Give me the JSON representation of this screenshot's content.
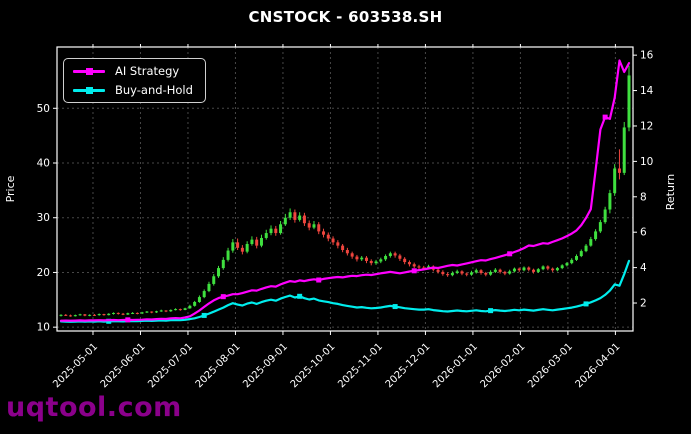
{
  "title": "CNSTOCK - 603538.SH",
  "watermark": "uqtool.com",
  "colors": {
    "background": "#000000",
    "text": "#ffffff",
    "grid": "#474747",
    "spine": "#ffffff",
    "candle_up": "#3fe03f",
    "candle_down": "#ef453e",
    "ai": "#ff00ff",
    "buy_hold": "#00eded",
    "watermark": "#8b008b"
  },
  "legend": {
    "items": [
      {
        "label": "AI Strategy",
        "color_key": "ai"
      },
      {
        "label": "Buy-and-Hold",
        "color_key": "buy_hold"
      }
    ]
  },
  "chart_data": {
    "type": "candlestick+line",
    "title": "CNSTOCK - 603538.SH",
    "x_axis": {
      "tick_labels": [
        "2025-05-01",
        "2025-06-01",
        "2025-07-01",
        "2025-08-01",
        "2025-09-01",
        "2025-10-01",
        "2025-11-01",
        "2025-12-01",
        "2026-01-01",
        "2026-02-01",
        "2026-03-01",
        "2026-04-01"
      ],
      "tick_indices": [
        6.7,
        16.65,
        26.6,
        36.55,
        46.5,
        56.45,
        66.4,
        76.35,
        86.3,
        96.25,
        106.2,
        116.15
      ]
    },
    "price_axis": {
      "label": "Price",
      "ticks": [
        10,
        20,
        30,
        40,
        50
      ],
      "range": [
        9.3,
        61.2
      ]
    },
    "return_axis": {
      "label": "Return",
      "ticks": [
        2,
        4,
        6,
        8,
        10,
        12,
        14,
        16
      ],
      "range": [
        0.42,
        16.46
      ]
    },
    "candles_ohlc": [
      [
        12.1,
        12.35,
        11.95,
        12.25
      ],
      [
        12.25,
        12.4,
        12.05,
        12.15
      ],
      [
        12.15,
        12.3,
        11.9,
        12.0
      ],
      [
        12.0,
        12.3,
        11.95,
        12.2
      ],
      [
        12.2,
        12.45,
        12.1,
        12.35
      ],
      [
        12.35,
        12.4,
        12.0,
        12.1
      ],
      [
        12.1,
        12.35,
        12.0,
        12.25
      ],
      [
        12.25,
        12.4,
        12.05,
        12.2
      ],
      [
        12.2,
        12.5,
        12.1,
        12.4
      ],
      [
        12.4,
        12.45,
        12.1,
        12.2
      ],
      [
        12.2,
        12.55,
        12.15,
        12.45
      ],
      [
        12.45,
        12.7,
        12.3,
        12.6
      ],
      [
        12.6,
        12.7,
        12.3,
        12.45
      ],
      [
        12.45,
        12.6,
        12.2,
        12.3
      ],
      [
        12.3,
        12.65,
        12.25,
        12.55
      ],
      [
        12.55,
        12.75,
        12.4,
        12.6
      ],
      [
        12.6,
        12.7,
        12.35,
        12.5
      ],
      [
        12.5,
        12.8,
        12.4,
        12.7
      ],
      [
        12.7,
        12.95,
        12.6,
        12.85
      ],
      [
        12.85,
        12.9,
        12.55,
        12.7
      ],
      [
        12.7,
        13.0,
        12.6,
        12.9
      ],
      [
        12.9,
        13.2,
        12.8,
        13.05
      ],
      [
        13.05,
        13.1,
        12.75,
        12.9
      ],
      [
        12.9,
        13.25,
        12.8,
        13.15
      ],
      [
        13.15,
        13.45,
        13.05,
        13.3
      ],
      [
        13.3,
        13.4,
        13.0,
        13.15
      ],
      [
        13.15,
        13.55,
        13.1,
        13.45
      ],
      [
        13.45,
        14.1,
        13.35,
        13.9
      ],
      [
        13.9,
        14.8,
        13.75,
        14.6
      ],
      [
        14.6,
        15.8,
        14.45,
        15.5
      ],
      [
        15.5,
        16.9,
        15.3,
        16.6
      ],
      [
        16.6,
        18.3,
        16.4,
        17.9
      ],
      [
        17.9,
        19.7,
        17.6,
        19.3
      ],
      [
        19.3,
        21.2,
        19.0,
        20.8
      ],
      [
        20.8,
        22.8,
        20.5,
        22.3
      ],
      [
        22.3,
        24.5,
        22.0,
        24.0
      ],
      [
        24.0,
        26.1,
        23.6,
        25.5
      ],
      [
        25.5,
        26.2,
        24.1,
        24.5
      ],
      [
        24.5,
        25.0,
        23.3,
        23.8
      ],
      [
        23.8,
        25.7,
        23.5,
        25.2
      ],
      [
        25.2,
        26.6,
        24.9,
        26.0
      ],
      [
        26.0,
        26.5,
        24.4,
        24.9
      ],
      [
        24.9,
        26.9,
        24.6,
        26.3
      ],
      [
        26.3,
        27.8,
        26.0,
        27.2
      ],
      [
        27.2,
        28.6,
        26.8,
        28.0
      ],
      [
        28.0,
        28.5,
        26.7,
        27.2
      ],
      [
        27.2,
        29.4,
        26.9,
        28.8
      ],
      [
        28.8,
        30.7,
        28.5,
        30.0
      ],
      [
        30.0,
        31.7,
        29.6,
        31.0
      ],
      [
        31.0,
        31.5,
        29.1,
        29.6
      ],
      [
        29.6,
        31.0,
        29.3,
        30.4
      ],
      [
        30.4,
        30.9,
        28.5,
        29.0
      ],
      [
        29.0,
        29.5,
        27.7,
        28.2
      ],
      [
        28.2,
        29.4,
        27.9,
        28.8
      ],
      [
        28.8,
        29.2,
        27.0,
        27.5
      ],
      [
        27.5,
        28.0,
        26.4,
        26.9
      ],
      [
        26.9,
        27.3,
        25.7,
        26.2
      ],
      [
        26.2,
        26.6,
        25.0,
        25.5
      ],
      [
        25.5,
        25.9,
        24.4,
        24.9
      ],
      [
        24.9,
        25.2,
        23.7,
        24.1
      ],
      [
        24.1,
        24.5,
        23.1,
        23.5
      ],
      [
        23.5,
        23.8,
        22.5,
        22.9
      ],
      [
        22.9,
        23.2,
        22.0,
        22.4
      ],
      [
        22.4,
        23.0,
        22.1,
        22.7
      ],
      [
        22.7,
        23.0,
        21.7,
        22.1
      ],
      [
        22.1,
        22.4,
        21.3,
        21.7
      ],
      [
        21.7,
        22.3,
        21.4,
        22.0
      ],
      [
        22.0,
        22.7,
        21.7,
        22.4
      ],
      [
        22.4,
        23.3,
        22.1,
        23.0
      ],
      [
        23.0,
        23.8,
        22.7,
        23.5
      ],
      [
        23.5,
        23.8,
        22.7,
        23.1
      ],
      [
        23.1,
        23.4,
        22.1,
        22.5
      ],
      [
        22.5,
        22.8,
        21.5,
        21.9
      ],
      [
        21.9,
        22.2,
        21.1,
        21.5
      ],
      [
        21.5,
        21.8,
        20.8,
        21.1
      ],
      [
        21.1,
        21.4,
        20.6,
        20.9
      ],
      [
        20.9,
        21.2,
        20.5,
        20.8
      ],
      [
        20.8,
        21.4,
        20.6,
        21.1
      ],
      [
        21.1,
        21.3,
        20.2,
        20.5
      ],
      [
        20.5,
        20.8,
        19.8,
        20.1
      ],
      [
        20.1,
        20.4,
        19.4,
        19.7
      ],
      [
        19.7,
        20.0,
        19.2,
        19.5
      ],
      [
        19.5,
        20.2,
        19.3,
        19.9
      ],
      [
        19.9,
        20.5,
        19.7,
        20.2
      ],
      [
        20.2,
        20.4,
        19.5,
        19.8
      ],
      [
        19.8,
        20.0,
        19.3,
        19.6
      ],
      [
        19.6,
        20.3,
        19.4,
        20.0
      ],
      [
        20.0,
        20.7,
        19.8,
        20.4
      ],
      [
        20.4,
        20.6,
        19.6,
        19.9
      ],
      [
        19.9,
        20.1,
        19.3,
        19.6
      ],
      [
        19.6,
        20.4,
        19.4,
        20.1
      ],
      [
        20.1,
        20.8,
        19.9,
        20.5
      ],
      [
        20.5,
        20.7,
        19.8,
        20.1
      ],
      [
        20.1,
        20.3,
        19.5,
        19.8
      ],
      [
        19.8,
        20.5,
        19.6,
        20.2
      ],
      [
        20.2,
        20.9,
        20.0,
        20.7
      ],
      [
        20.7,
        20.9,
        20.1,
        20.4
      ],
      [
        20.4,
        21.1,
        20.2,
        20.9
      ],
      [
        20.9,
        21.1,
        20.2,
        20.5
      ],
      [
        20.5,
        20.7,
        19.8,
        20.1
      ],
      [
        20.1,
        20.8,
        19.9,
        20.6
      ],
      [
        20.6,
        21.3,
        20.4,
        21.1
      ],
      [
        21.1,
        21.3,
        20.4,
        20.7
      ],
      [
        20.7,
        20.9,
        20.1,
        20.4
      ],
      [
        20.4,
        21.0,
        20.2,
        20.8
      ],
      [
        20.8,
        21.5,
        20.6,
        21.3
      ],
      [
        21.3,
        21.9,
        21.1,
        21.7
      ],
      [
        21.7,
        22.6,
        21.5,
        22.3
      ],
      [
        22.3,
        23.3,
        22.1,
        23.0
      ],
      [
        23.0,
        24.2,
        22.8,
        23.9
      ],
      [
        23.9,
        25.2,
        23.7,
        24.9
      ],
      [
        24.9,
        26.5,
        24.7,
        26.1
      ],
      [
        26.1,
        27.9,
        25.8,
        27.5
      ],
      [
        27.5,
        29.6,
        27.2,
        29.2
      ],
      [
        29.2,
        32.0,
        28.9,
        31.5
      ],
      [
        31.5,
        35.1,
        30.8,
        34.5
      ],
      [
        34.5,
        39.8,
        34.0,
        39.0
      ],
      [
        39.0,
        42.5,
        37.0,
        38.2
      ],
      [
        38.2,
        47.5,
        37.8,
        46.5
      ],
      [
        46.5,
        57.8,
        45.8,
        56.0
      ]
    ],
    "series": [
      {
        "name": "AI Strategy",
        "axis": "return",
        "color_key": "ai",
        "marker_every": [
          14,
          34,
          54,
          74,
          94,
          114
        ],
        "values": [
          1.0,
          1.01,
          1.0,
          1.01,
          1.02,
          1.01,
          1.02,
          1.02,
          1.03,
          1.02,
          1.03,
          1.04,
          1.03,
          1.04,
          1.05,
          1.04,
          1.05,
          1.06,
          1.08,
          1.07,
          1.09,
          1.11,
          1.1,
          1.13,
          1.15,
          1.14,
          1.18,
          1.25,
          1.4,
          1.58,
          1.78,
          1.98,
          2.15,
          2.28,
          2.36,
          2.42,
          2.5,
          2.5,
          2.56,
          2.64,
          2.72,
          2.7,
          2.8,
          2.88,
          2.95,
          2.93,
          3.05,
          3.15,
          3.24,
          3.2,
          3.28,
          3.24,
          3.3,
          3.34,
          3.3,
          3.36,
          3.4,
          3.44,
          3.47,
          3.45,
          3.5,
          3.54,
          3.52,
          3.57,
          3.6,
          3.58,
          3.63,
          3.68,
          3.72,
          3.76,
          3.72,
          3.68,
          3.73,
          3.78,
          3.82,
          3.86,
          3.9,
          3.95,
          4.0,
          3.98,
          4.04,
          4.1,
          4.15,
          4.12,
          4.18,
          4.24,
          4.3,
          4.36,
          4.42,
          4.4,
          4.48,
          4.55,
          4.62,
          4.7,
          4.78,
          4.88,
          4.98,
          5.1,
          5.25,
          5.22,
          5.3,
          5.38,
          5.35,
          5.45,
          5.55,
          5.65,
          5.78,
          5.92,
          6.1,
          6.4,
          6.8,
          7.3,
          9.5,
          11.8,
          12.5,
          12.4,
          13.6,
          15.7,
          15.05,
          15.55
        ]
      },
      {
        "name": "Buy-and-Hold",
        "axis": "return",
        "color_key": "buy_hold",
        "marker_every": [
          10,
          30,
          50,
          70,
          90,
          110
        ],
        "values": [
          0.96,
          0.95,
          0.94,
          0.95,
          0.96,
          0.95,
          0.96,
          0.95,
          0.97,
          0.95,
          0.97,
          0.98,
          0.97,
          0.96,
          0.98,
          0.98,
          0.98,
          0.99,
          1.0,
          0.99,
          1.01,
          1.02,
          1.01,
          1.03,
          1.04,
          1.03,
          1.05,
          1.09,
          1.14,
          1.21,
          1.3,
          1.4,
          1.51,
          1.63,
          1.74,
          1.88,
          1.99,
          1.91,
          1.86,
          1.97,
          2.03,
          1.95,
          2.05,
          2.13,
          2.19,
          2.13,
          2.25,
          2.34,
          2.42,
          2.31,
          2.38,
          2.27,
          2.2,
          2.25,
          2.15,
          2.1,
          2.05,
          1.99,
          1.95,
          1.88,
          1.84,
          1.79,
          1.75,
          1.77,
          1.73,
          1.7,
          1.72,
          1.75,
          1.8,
          1.84,
          1.8,
          1.76,
          1.71,
          1.68,
          1.65,
          1.63,
          1.63,
          1.65,
          1.6,
          1.57,
          1.54,
          1.52,
          1.55,
          1.58,
          1.55,
          1.53,
          1.56,
          1.59,
          1.55,
          1.53,
          1.57,
          1.6,
          1.57,
          1.55,
          1.58,
          1.62,
          1.59,
          1.63,
          1.6,
          1.57,
          1.61,
          1.65,
          1.62,
          1.59,
          1.63,
          1.66,
          1.7,
          1.74,
          1.8,
          1.87,
          1.95,
          2.04,
          2.15,
          2.28,
          2.46,
          2.7,
          3.05,
          2.98,
          3.63,
          4.38
        ]
      }
    ]
  }
}
